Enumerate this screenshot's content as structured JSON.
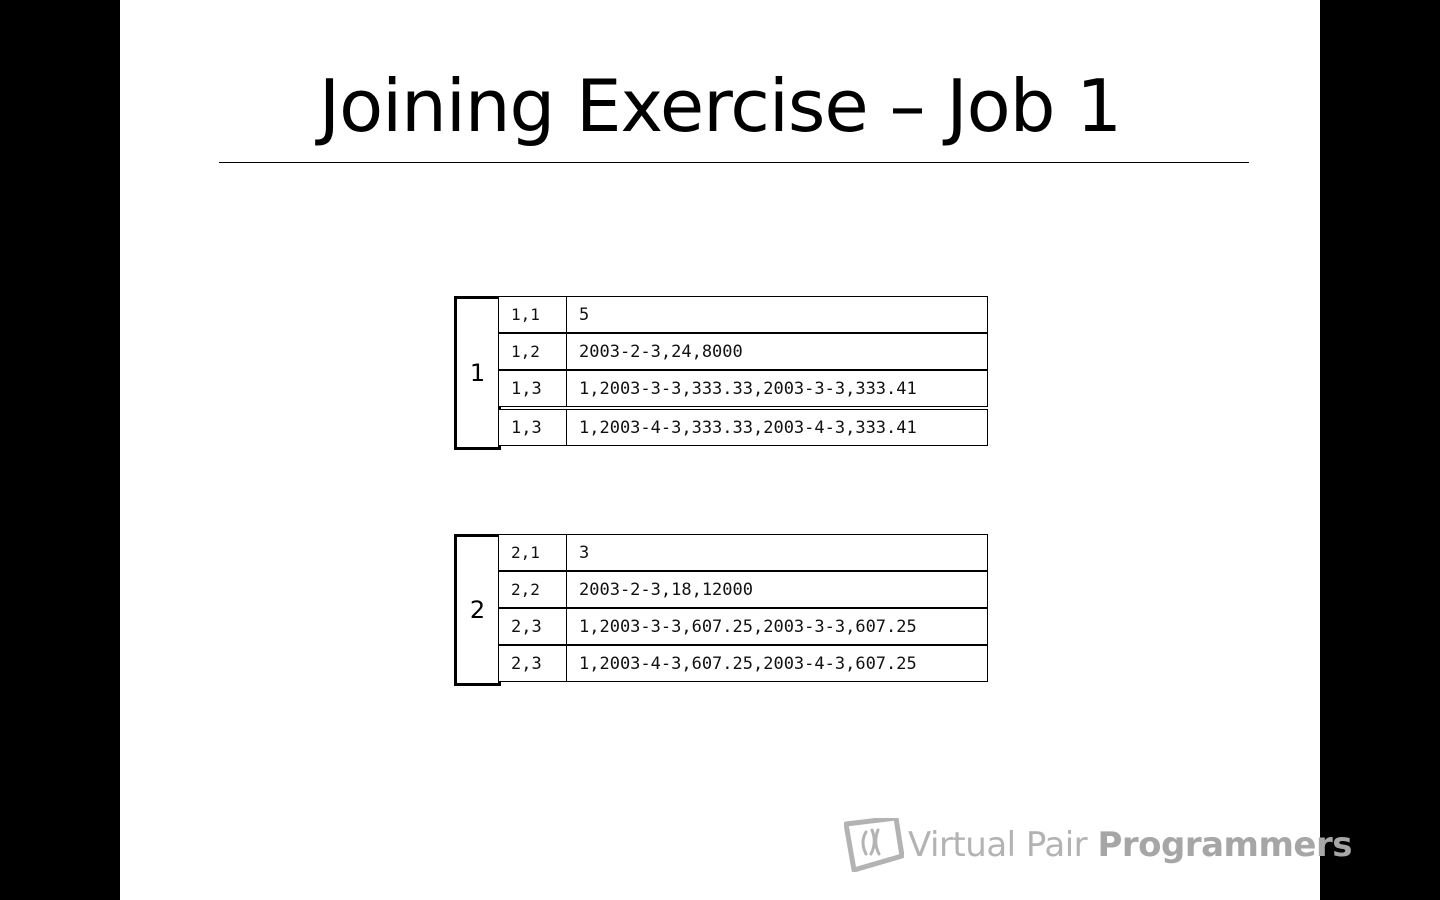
{
  "slide": {
    "title": "Joining Exercise – Job 1"
  },
  "groups": [
    {
      "key": "1",
      "rows": [
        {
          "k": "1,1",
          "v": "5"
        },
        {
          "k": "1,2",
          "v": "2003-2-3,24,8000"
        },
        {
          "k": "1,3",
          "v": "1,2003-3-3,333.33,2003-3-3,333.41"
        },
        {
          "k": "1,3",
          "v": "1,2003-4-3,333.33,2003-4-3,333.41"
        }
      ]
    },
    {
      "key": "2",
      "rows": [
        {
          "k": "2,1",
          "v": "3"
        },
        {
          "k": "2,2",
          "v": "2003-2-3,18,12000"
        },
        {
          "k": "2,3",
          "v": "1,2003-3-3,607.25,2003-3-3,607.25"
        },
        {
          "k": "2,3",
          "v": "1,2003-4-3,607.25,2003-4-3,607.25"
        }
      ]
    }
  ],
  "logo": {
    "name_light": "Virtual Pair ",
    "name_bold": "Programmers",
    "icon": "vpp-logo-icon",
    "color": "#b3b3b3"
  }
}
